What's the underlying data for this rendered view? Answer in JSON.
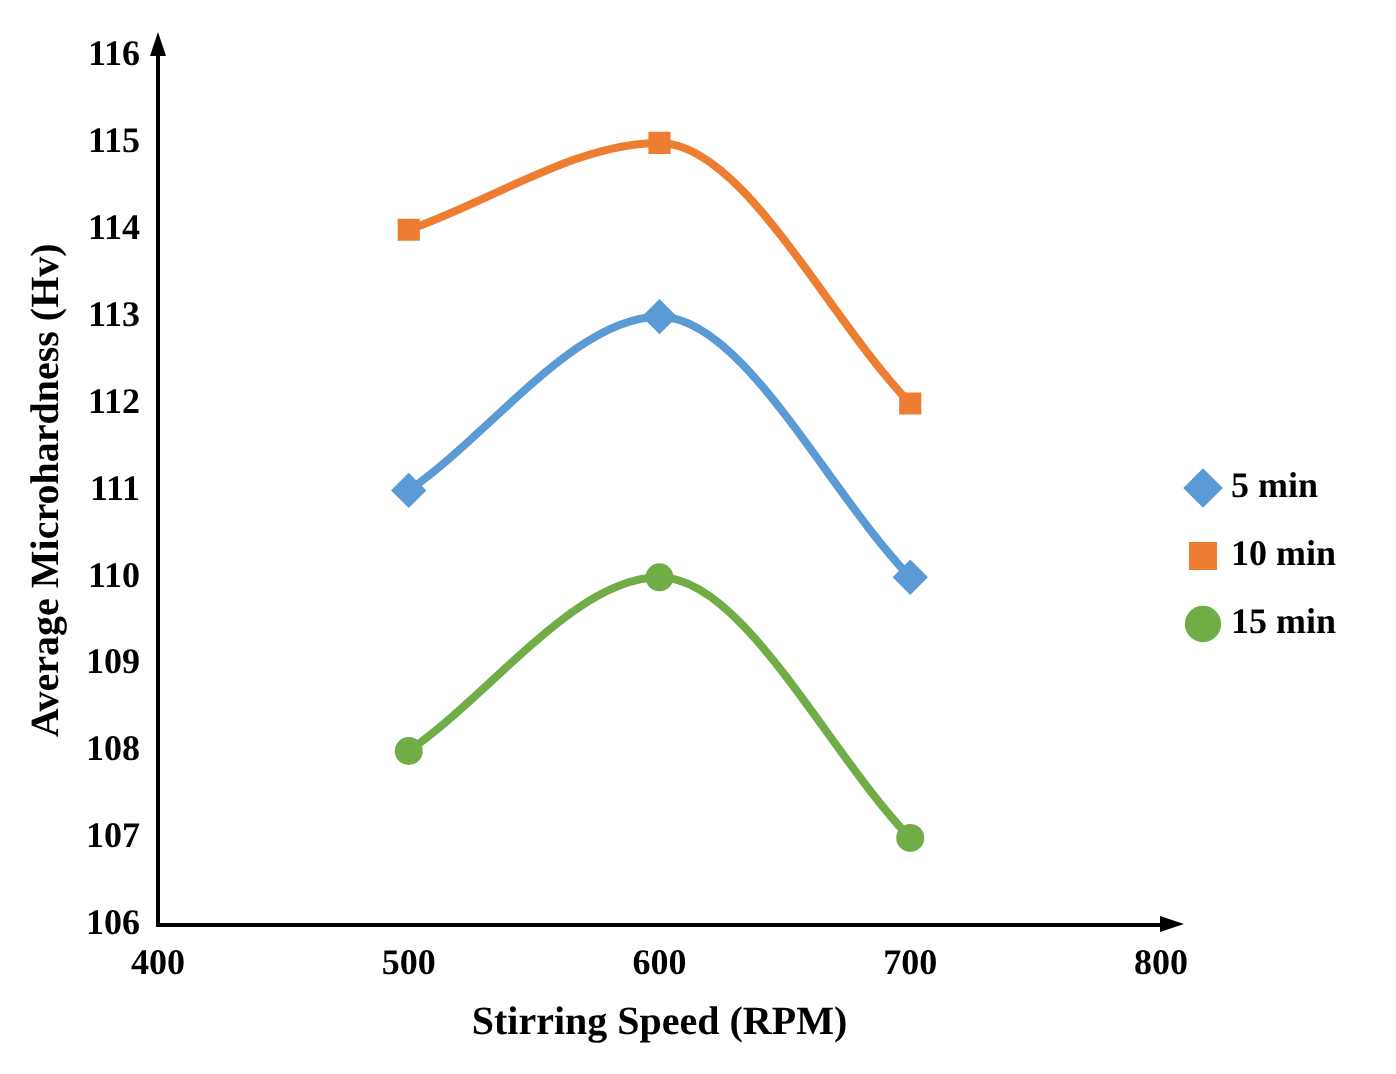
{
  "chart_data": {
    "type": "line",
    "xlabel": "Stirring Speed (RPM)",
    "ylabel": "Average Microhardness (Hv)",
    "x": [
      500,
      600,
      700
    ],
    "series": [
      {
        "name": "5 min",
        "color": "#5b9bd5",
        "marker": "diamond",
        "values": [
          111,
          113,
          110
        ]
      },
      {
        "name": "10 min",
        "color": "#ed7d31",
        "marker": "square",
        "values": [
          114,
          115,
          112
        ]
      },
      {
        "name": "15 min",
        "color": "#70ad47",
        "marker": "circle",
        "values": [
          108,
          110,
          107
        ]
      }
    ],
    "xlim": [
      400,
      800
    ],
    "xticks": [
      400,
      500,
      600,
      700,
      800
    ],
    "ylim": [
      106,
      116
    ],
    "yticks": [
      106,
      107,
      108,
      109,
      110,
      111,
      112,
      113,
      114,
      115,
      116
    ],
    "grid": false,
    "legend": "right"
  }
}
